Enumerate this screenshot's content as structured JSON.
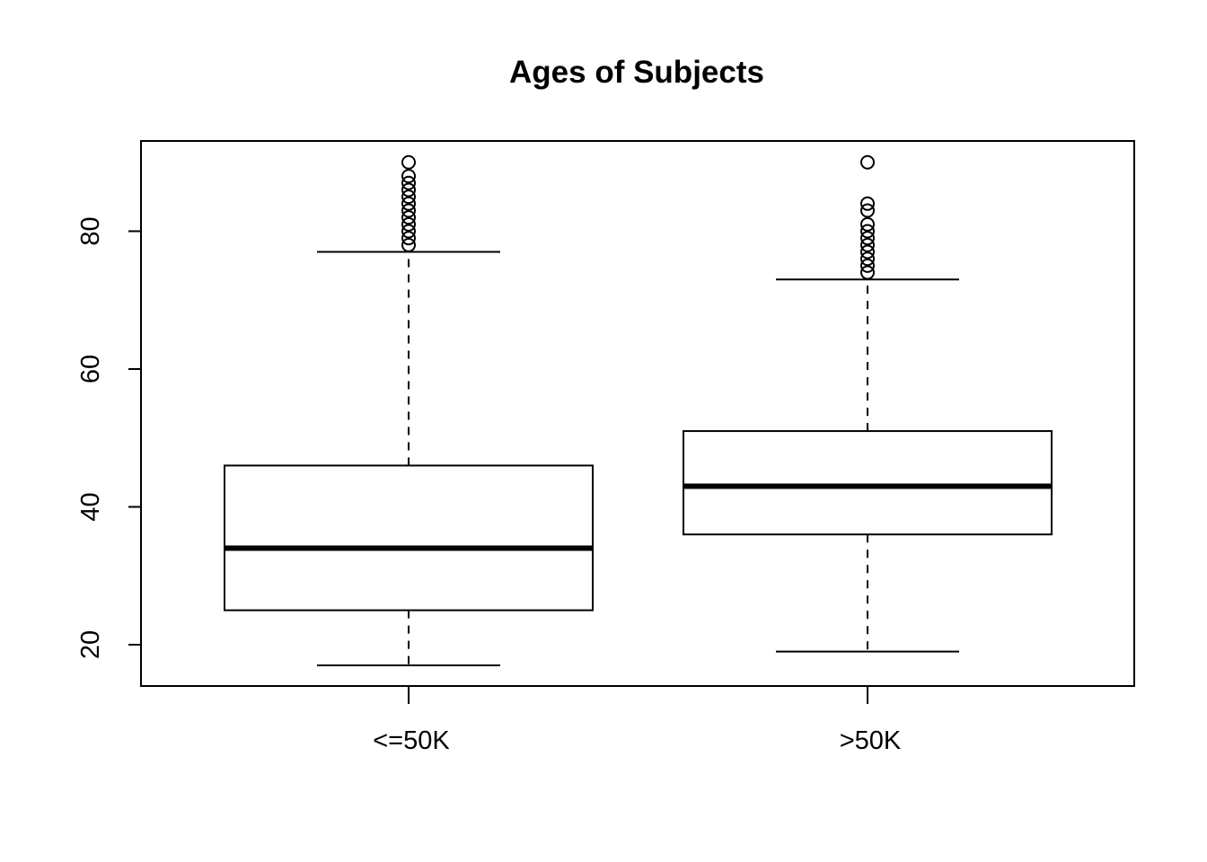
{
  "chart_data": {
    "type": "boxplot",
    "title": "Ages of Subjects",
    "xlabel": "",
    "ylabel": "",
    "ylim": [
      14,
      93
    ],
    "yticks": [
      20,
      40,
      60,
      80
    ],
    "grid": false,
    "categories": [
      "<=50K",
      ">50K"
    ],
    "boxes": [
      {
        "category": "<=50K",
        "whisker_low": 17,
        "q1": 25,
        "median": 34,
        "q3": 46,
        "whisker_high": 77,
        "outliers": [
          78,
          79,
          80,
          81,
          82,
          83,
          84,
          85,
          86,
          87,
          88,
          90
        ]
      },
      {
        "category": ">50K",
        "whisker_low": 19,
        "q1": 36,
        "median": 43,
        "q3": 51,
        "whisker_high": 73,
        "outliers": [
          74,
          75,
          76,
          77,
          78,
          79,
          80,
          81,
          83,
          84,
          90
        ]
      }
    ]
  }
}
